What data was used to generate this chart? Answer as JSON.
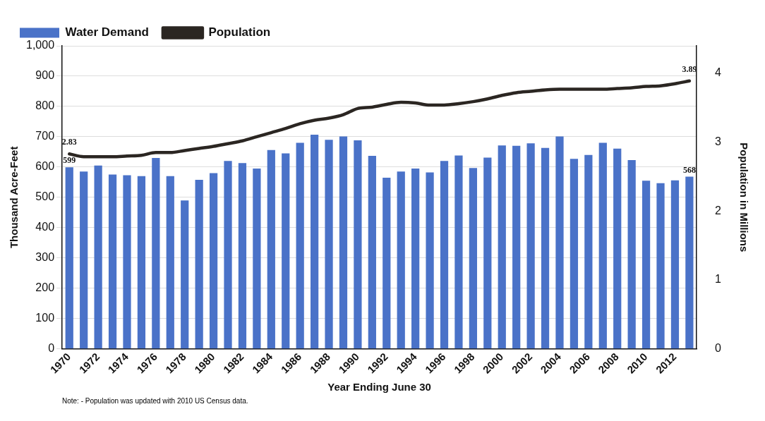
{
  "chart_data": {
    "type": "bar",
    "xlabel": "Year Ending June 30",
    "ylabel": "Thousand Acre-Feet",
    "y2label": "Population in Millions",
    "categories": [
      "1970",
      null,
      "1972",
      null,
      "1974",
      null,
      "1976",
      null,
      "1978",
      null,
      "1980",
      null,
      "1982",
      null,
      "1984",
      null,
      "1986",
      null,
      "1988",
      null,
      "1990",
      null,
      "1992",
      null,
      "1994",
      null,
      "1996",
      null,
      "1998",
      null,
      "2000",
      null,
      "2002",
      null,
      "2004",
      null,
      "2006",
      null,
      "2008",
      null,
      "2010",
      null,
      "2012",
      null
    ],
    "series": [
      {
        "name": "Water Demand",
        "color": "#4a72c8",
        "values": [
          599,
          585,
          605,
          575,
          573,
          570,
          630,
          570,
          490,
          558,
          580,
          620,
          613,
          595,
          656,
          645,
          680,
          707,
          690,
          701,
          688,
          637,
          565,
          585,
          595,
          582,
          620,
          638,
          597,
          631,
          671,
          670,
          678,
          663,
          701,
          627,
          640,
          680,
          661,
          623,
          555,
          547,
          556,
          568
        ],
        "value_labels": [
          "599",
          null,
          null,
          null,
          null,
          null,
          null,
          null,
          null,
          null,
          null,
          null,
          null,
          null,
          null,
          null,
          null,
          null,
          null,
          null,
          null,
          null,
          null,
          null,
          null,
          null,
          null,
          null,
          null,
          null,
          null,
          null,
          null,
          null,
          null,
          null,
          null,
          null,
          null,
          null,
          null,
          null,
          null,
          "568"
        ]
      },
      {
        "name": "Population",
        "type": "line",
        "axis": "y2",
        "color": "#2b2622",
        "values": [
          2.83,
          2.79,
          2.79,
          2.79,
          2.8,
          2.81,
          2.85,
          2.85,
          2.88,
          2.91,
          2.94,
          2.98,
          3.02,
          3.08,
          3.14,
          3.2,
          3.27,
          3.32,
          3.35,
          3.4,
          3.49,
          3.51,
          3.55,
          3.58,
          3.57,
          3.54,
          3.54,
          3.56,
          3.59,
          3.63,
          3.68,
          3.72,
          3.74,
          3.76,
          3.77,
          3.77,
          3.77,
          3.77,
          3.78,
          3.79,
          3.81,
          3.82,
          3.85,
          3.89
        ],
        "value_labels": [
          "2.83",
          null,
          null,
          null,
          null,
          null,
          null,
          null,
          null,
          null,
          null,
          null,
          null,
          null,
          null,
          null,
          null,
          null,
          null,
          null,
          null,
          null,
          null,
          null,
          null,
          null,
          null,
          null,
          null,
          null,
          null,
          null,
          null,
          null,
          null,
          null,
          null,
          null,
          null,
          null,
          null,
          null,
          null,
          "3.89"
        ]
      }
    ],
    "ylim": [
      0,
      1000
    ],
    "yticks": [
      0,
      100,
      200,
      300,
      400,
      500,
      600,
      700,
      800,
      900,
      {
        "value": 1000,
        "label": "1,000"
      }
    ],
    "y2lim": [
      0,
      4.4
    ],
    "y2ticks": [
      0,
      1,
      2,
      3,
      4
    ],
    "grid": "y",
    "legend": "top",
    "marker": "none",
    "line_style": "solid",
    "annotations": [
      "Note: - Population was updated with 2010 US Census data."
    ]
  }
}
